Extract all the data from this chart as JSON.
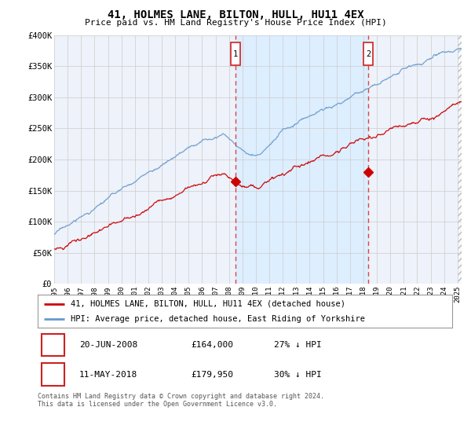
{
  "title": "41, HOLMES LANE, BILTON, HULL, HU11 4EX",
  "subtitle": "Price paid vs. HM Land Registry's House Price Index (HPI)",
  "ylabel_ticks": [
    "£0",
    "£50K",
    "£100K",
    "£150K",
    "£200K",
    "£250K",
    "£300K",
    "£350K",
    "£400K"
  ],
  "ylim": [
    0,
    400000
  ],
  "xlim_start": 1995.0,
  "xlim_end": 2025.3,
  "marker1_x": 2008.47,
  "marker1_y": 164000,
  "marker1_label": "1",
  "marker2_x": 2018.36,
  "marker2_y": 179950,
  "marker2_label": "2",
  "line1_label": "41, HOLMES LANE, BILTON, HULL, HU11 4EX (detached house)",
  "line2_label": "HPI: Average price, detached house, East Riding of Yorkshire",
  "sale1_date": "20-JUN-2008",
  "sale1_price": "£164,000",
  "sale1_hpi": "27% ↓ HPI",
  "sale2_date": "11-MAY-2018",
  "sale2_price": "£179,950",
  "sale2_hpi": "30% ↓ HPI",
  "footer": "Contains HM Land Registry data © Crown copyright and database right 2024.\nThis data is licensed under the Open Government Licence v3.0.",
  "line1_color": "#cc0000",
  "line2_color": "#6699cc",
  "marker_line_color": "#dd4444",
  "shade_color": "#ddeeff",
  "grid_color": "#cccccc",
  "bg_color": "#ffffff",
  "plot_bg_color": "#eef2fa"
}
